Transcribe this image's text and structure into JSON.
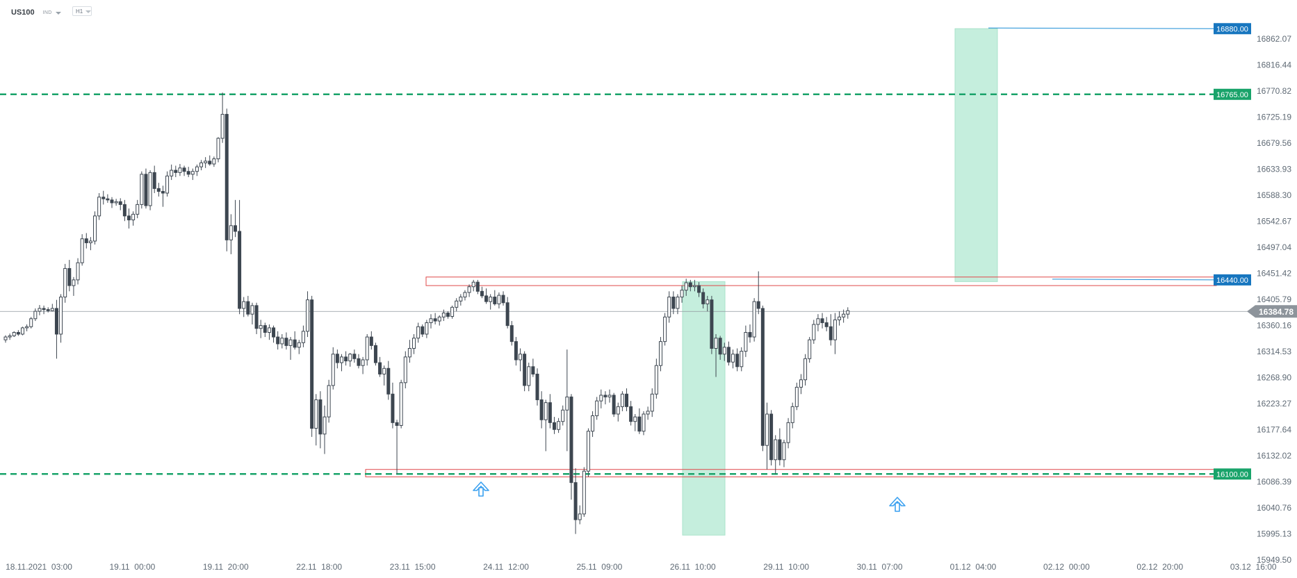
{
  "header": {
    "symbol": "US100",
    "market": "IND",
    "timeframe": "H1"
  },
  "chart_data": {
    "type": "candlestick",
    "price_axis_labels": [
      "16862.07",
      "16816.44",
      "16770.82",
      "16725.19",
      "16679.56",
      "16633.93",
      "16588.30",
      "16542.67",
      "16497.04",
      "16451.42",
      "16405.79",
      "16360.16",
      "16314.53",
      "16268.90",
      "16223.27",
      "16177.64",
      "16132.02",
      "16086.39",
      "16040.76",
      "15995.13",
      "15949.50"
    ],
    "time_axis_labels": [
      "18.11.2021  03:00",
      "19.11  00:00",
      "19.11  20:00",
      "22.11  18:00",
      "23.11  15:00",
      "24.11  12:00",
      "25.11  09:00",
      "26.11  10:00",
      "29.11  10:00",
      "30.11  07:00",
      "01.12  04:00",
      "02.12  00:00",
      "02.12  20:00",
      "03.12  16:00"
    ],
    "current_price": "16384.78",
    "levels": [
      {
        "name": "target",
        "price": 16880.0,
        "label": "16880.00",
        "style": "solid",
        "color": "#1d8ed6",
        "label_bg": "#1776bf"
      },
      {
        "name": "resistance-high",
        "price": 16765.0,
        "label": "16765.00",
        "style": "dashed",
        "color": "#19a36a",
        "label_bg": "#19a36a"
      },
      {
        "name": "neckline",
        "price": 16440.0,
        "label": "16440.00",
        "style": "solid",
        "color": "#1d8ed6",
        "label_bg": "#1776bf"
      },
      {
        "name": "support",
        "price": 16100.0,
        "label": "16100.00",
        "style": "dashed",
        "color": "#19a36a",
        "label_bg": "#19a36a"
      }
    ],
    "zones": [
      {
        "name": "neckline-zone",
        "low": 16430,
        "high": 16445
      },
      {
        "name": "support-zone",
        "low": 16095,
        "high": 16108
      }
    ],
    "projections": [
      {
        "name": "pattern-height",
        "low": 15993,
        "high": 16437
      },
      {
        "name": "target-projection",
        "low": 16437,
        "high": 16880
      }
    ],
    "markers": [
      "arrow-up",
      "arrow-up"
    ],
    "candles": [
      [
        16335,
        16343,
        16330,
        16340
      ],
      [
        16340,
        16346,
        16335,
        16342
      ],
      [
        16342,
        16350,
        16340,
        16348
      ],
      [
        16348,
        16352,
        16342,
        16345
      ],
      [
        16345,
        16358,
        16343,
        16356
      ],
      [
        16356,
        16362,
        16350,
        16358
      ],
      [
        16358,
        16375,
        16355,
        16372
      ],
      [
        16372,
        16390,
        16368,
        16385
      ],
      [
        16385,
        16396,
        16378,
        16390
      ],
      [
        16390,
        16395,
        16380,
        16388
      ],
      [
        16388,
        16392,
        16383,
        16386
      ],
      [
        16386,
        16398,
        16385,
        16390
      ],
      [
        16390,
        16405,
        16302,
        16345
      ],
      [
        16345,
        16415,
        16330,
        16410
      ],
      [
        16410,
        16468,
        16400,
        16460
      ],
      [
        16460,
        16475,
        16420,
        16430
      ],
      [
        16430,
        16445,
        16412,
        16440
      ],
      [
        16440,
        16478,
        16432,
        16470
      ],
      [
        16470,
        16520,
        16465,
        16512
      ],
      [
        16512,
        16522,
        16495,
        16505
      ],
      [
        16505,
        16515,
        16492,
        16508
      ],
      [
        16508,
        16560,
        16502,
        16552
      ],
      [
        16552,
        16592,
        16545,
        16585
      ],
      [
        16585,
        16596,
        16572,
        16582
      ],
      [
        16582,
        16590,
        16575,
        16580
      ],
      [
        16580,
        16585,
        16566,
        16575
      ],
      [
        16575,
        16582,
        16570,
        16577
      ],
      [
        16577,
        16583,
        16562,
        16572
      ],
      [
        16572,
        16580,
        16543,
        16552
      ],
      [
        16552,
        16565,
        16530,
        16545
      ],
      [
        16545,
        16560,
        16535,
        16555
      ],
      [
        16555,
        16580,
        16548,
        16572
      ],
      [
        16572,
        16630,
        16565,
        16625
      ],
      [
        16625,
        16635,
        16565,
        16570
      ],
      [
        16570,
        16632,
        16562,
        16628
      ],
      [
        16628,
        16640,
        16592,
        16600
      ],
      [
        16600,
        16610,
        16586,
        16595
      ],
      [
        16595,
        16605,
        16568,
        16592
      ],
      [
        16592,
        16630,
        16586,
        16622
      ],
      [
        16622,
        16642,
        16615,
        16632
      ],
      [
        16632,
        16640,
        16620,
        16628
      ],
      [
        16628,
        16643,
        16622,
        16636
      ],
      [
        16636,
        16640,
        16622,
        16630
      ],
      [
        16630,
        16638,
        16620,
        16625
      ],
      [
        16625,
        16635,
        16615,
        16630
      ],
      [
        16630,
        16642,
        16622,
        16638
      ],
      [
        16638,
        16650,
        16632,
        16645
      ],
      [
        16645,
        16655,
        16636,
        16648
      ],
      [
        16648,
        16658,
        16640,
        16643
      ],
      [
        16643,
        16656,
        16638,
        16652
      ],
      [
        16652,
        16690,
        16646,
        16688
      ],
      [
        16688,
        16768,
        16680,
        16730
      ],
      [
        16730,
        16740,
        16490,
        16510
      ],
      [
        16510,
        16555,
        16485,
        16535
      ],
      [
        16535,
        16580,
        16515,
        16525
      ],
      [
        16525,
        16580,
        16380,
        16390
      ],
      [
        16390,
        16410,
        16375,
        16402
      ],
      [
        16402,
        16412,
        16376,
        16380
      ],
      [
        16380,
        16400,
        16362,
        16395
      ],
      [
        16395,
        16400,
        16345,
        16355
      ],
      [
        16355,
        16370,
        16338,
        16360
      ],
      [
        16360,
        16365,
        16340,
        16348
      ],
      [
        16348,
        16362,
        16335,
        16356
      ],
      [
        16356,
        16360,
        16330,
        16340
      ],
      [
        16340,
        16350,
        16318,
        16328
      ],
      [
        16328,
        16345,
        16320,
        16338
      ],
      [
        16338,
        16348,
        16318,
        16325
      ],
      [
        16325,
        16340,
        16300,
        16335
      ],
      [
        16335,
        16350,
        16318,
        16322
      ],
      [
        16322,
        16335,
        16310,
        16330
      ],
      [
        16330,
        16360,
        16322,
        16350
      ],
      [
        16350,
        16420,
        16340,
        16405
      ],
      [
        16405,
        16412,
        16165,
        16180
      ],
      [
        16180,
        16240,
        16150,
        16230
      ],
      [
        16230,
        16245,
        16145,
        16170
      ],
      [
        16170,
        16220,
        16135,
        16200
      ],
      [
        16200,
        16265,
        16190,
        16255
      ],
      [
        16255,
        16322,
        16248,
        16310
      ],
      [
        16310,
        16318,
        16285,
        16295
      ],
      [
        16295,
        16310,
        16280,
        16305
      ],
      [
        16305,
        16315,
        16290,
        16298
      ],
      [
        16298,
        16312,
        16288,
        16310
      ],
      [
        16310,
        16318,
        16295,
        16302
      ],
      [
        16302,
        16310,
        16285,
        16290
      ],
      [
        16290,
        16305,
        16275,
        16300
      ],
      [
        16300,
        16345,
        16290,
        16340
      ],
      [
        16340,
        16350,
        16318,
        16325
      ],
      [
        16325,
        16330,
        16290,
        16295
      ],
      [
        16295,
        16305,
        16270,
        16275
      ],
      [
        16275,
        16290,
        16255,
        16285
      ],
      [
        16285,
        16298,
        16230,
        16240
      ],
      [
        16240,
        16260,
        16180,
        16190
      ],
      [
        16190,
        16195,
        16100,
        16185
      ],
      [
        16185,
        16265,
        16180,
        16260
      ],
      [
        16260,
        16315,
        16250,
        16305
      ],
      [
        16305,
        16335,
        16295,
        16320
      ],
      [
        16320,
        16345,
        16310,
        16338
      ],
      [
        16338,
        16365,
        16330,
        16358
      ],
      [
        16358,
        16362,
        16340,
        16345
      ],
      [
        16345,
        16370,
        16338,
        16365
      ],
      [
        16365,
        16380,
        16355,
        16372
      ],
      [
        16372,
        16382,
        16362,
        16368
      ],
      [
        16368,
        16378,
        16360,
        16375
      ],
      [
        16375,
        16388,
        16368,
        16382
      ],
      [
        16382,
        16385,
        16372,
        16376
      ],
      [
        16376,
        16395,
        16372,
        16392
      ],
      [
        16392,
        16408,
        16385,
        16403
      ],
      [
        16403,
        16415,
        16395,
        16410
      ],
      [
        16410,
        16422,
        16404,
        16418
      ],
      [
        16418,
        16432,
        16410,
        16428
      ],
      [
        16428,
        16440,
        16420,
        16436
      ],
      [
        16436,
        16440,
        16415,
        16420
      ],
      [
        16420,
        16428,
        16408,
        16412
      ],
      [
        16412,
        16425,
        16398,
        16402
      ],
      [
        16402,
        16415,
        16388,
        16410
      ],
      [
        16410,
        16422,
        16395,
        16398
      ],
      [
        16398,
        16418,
        16390,
        16413
      ],
      [
        16413,
        16420,
        16395,
        16400
      ],
      [
        16400,
        16410,
        16355,
        16360
      ],
      [
        16360,
        16368,
        16325,
        16332
      ],
      [
        16332,
        16340,
        16290,
        16300
      ],
      [
        16300,
        16320,
        16280,
        16310
      ],
      [
        16310,
        16315,
        16245,
        16255
      ],
      [
        16255,
        16295,
        16245,
        16288
      ],
      [
        16288,
        16302,
        16270,
        16275
      ],
      [
        16275,
        16285,
        16220,
        16230
      ],
      [
        16230,
        16245,
        16180,
        16195
      ],
      [
        16195,
        16230,
        16140,
        16225
      ],
      [
        16225,
        16240,
        16180,
        16190
      ],
      [
        16190,
        16200,
        16170,
        16178
      ],
      [
        16178,
        16198,
        16172,
        16192
      ],
      [
        16192,
        16220,
        16185,
        16212
      ],
      [
        16212,
        16318,
        16140,
        16235
      ],
      [
        16235,
        16240,
        16055,
        16085
      ],
      [
        16085,
        16110,
        15995,
        16020
      ],
      [
        16020,
        16045,
        16012,
        16030
      ],
      [
        16030,
        16112,
        16025,
        16105
      ],
      [
        16105,
        16180,
        16095,
        16175
      ],
      [
        16175,
        16210,
        16165,
        16202
      ],
      [
        16202,
        16235,
        16195,
        16228
      ],
      [
        16228,
        16248,
        16215,
        16238
      ],
      [
        16238,
        16245,
        16222,
        16235
      ],
      [
        16235,
        16248,
        16225,
        16238
      ],
      [
        16238,
        16242,
        16200,
        16205
      ],
      [
        16205,
        16225,
        16192,
        16218
      ],
      [
        16218,
        16245,
        16210,
        16240
      ],
      [
        16240,
        16250,
        16210,
        16218
      ],
      [
        16218,
        16228,
        16185,
        16192
      ],
      [
        16192,
        16205,
        16175,
        16200
      ],
      [
        16200,
        16215,
        16170,
        16175
      ],
      [
        16175,
        16210,
        16168,
        16205
      ],
      [
        16205,
        16218,
        16195,
        16210
      ],
      [
        16210,
        16250,
        16200,
        16240
      ],
      [
        16240,
        16302,
        16232,
        16290
      ],
      [
        16290,
        16340,
        16280,
        16332
      ],
      [
        16332,
        16382,
        16325,
        16375
      ],
      [
        16375,
        16420,
        16365,
        16410
      ],
      [
        16410,
        16420,
        16380,
        16390
      ],
      [
        16390,
        16415,
        16380,
        16410
      ],
      [
        16410,
        16430,
        16400,
        16422
      ],
      [
        16422,
        16442,
        16412,
        16435
      ],
      [
        16435,
        16440,
        16420,
        16428
      ],
      [
        16428,
        16440,
        16420,
        16430
      ],
      [
        16430,
        16436,
        16410,
        16418
      ],
      [
        16418,
        16425,
        16390,
        16398
      ],
      [
        16398,
        16412,
        16385,
        16405
      ],
      [
        16405,
        16412,
        16310,
        16320
      ],
      [
        16320,
        16345,
        16270,
        16338
      ],
      [
        16338,
        16342,
        16300,
        16310
      ],
      [
        16310,
        16330,
        16298,
        16322
      ],
      [
        16322,
        16332,
        16290,
        16296
      ],
      [
        16296,
        16318,
        16285,
        16310
      ],
      [
        16310,
        16320,
        16280,
        16288
      ],
      [
        16288,
        16322,
        16280,
        16315
      ],
      [
        16315,
        16360,
        16305,
        16348
      ],
      [
        16348,
        16362,
        16330,
        16340
      ],
      [
        16340,
        16408,
        16332,
        16402
      ],
      [
        16402,
        16455,
        16380,
        16390
      ],
      [
        16390,
        16395,
        16140,
        16150
      ],
      [
        16150,
        16225,
        16108,
        16205
      ],
      [
        16205,
        16212,
        16115,
        16125
      ],
      [
        16125,
        16168,
        16100,
        16160
      ],
      [
        16160,
        16180,
        16115,
        16125
      ],
      [
        16125,
        16160,
        16112,
        16155
      ],
      [
        16155,
        16198,
        16145,
        16190
      ],
      [
        16190,
        16225,
        16180,
        16218
      ],
      [
        16218,
        16260,
        16212,
        16252
      ],
      [
        16252,
        16275,
        16240,
        16265
      ],
      [
        16265,
        16310,
        16255,
        16302
      ],
      [
        16302,
        16340,
        16295,
        16335
      ],
      [
        16335,
        16370,
        16328,
        16362
      ],
      [
        16362,
        16380,
        16350,
        16372
      ],
      [
        16372,
        16382,
        16355,
        16365
      ],
      [
        16365,
        16375,
        16350,
        16358
      ],
      [
        16358,
        16380,
        16325,
        16335
      ],
      [
        16335,
        16382,
        16310,
        16370
      ],
      [
        16370,
        16385,
        16360,
        16375
      ],
      [
        16375,
        16388,
        16365,
        16380
      ],
      [
        16380,
        16392,
        16372,
        16386
      ]
    ]
  }
}
